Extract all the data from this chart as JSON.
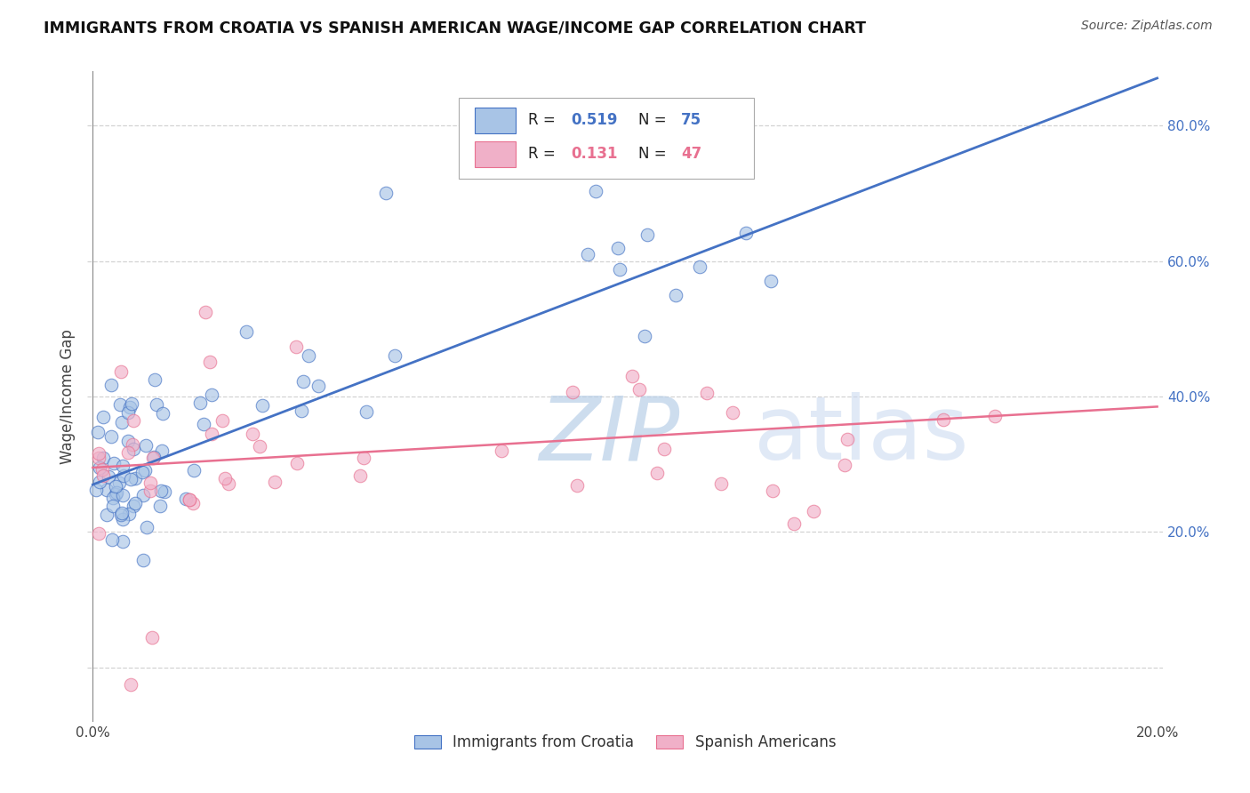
{
  "title": "IMMIGRANTS FROM CROATIA VS SPANISH AMERICAN WAGE/INCOME GAP CORRELATION CHART",
  "source": "Source: ZipAtlas.com",
  "ylabel": "Wage/Income Gap",
  "blue_color": "#4472C4",
  "pink_color": "#E87090",
  "blue_scatter": "#a8c4e6",
  "pink_scatter": "#f0b0c8",
  "background_color": "#ffffff",
  "grid_color": "#c8c8c8",
  "xlim": [
    -0.001,
    0.201
  ],
  "ylim": [
    -0.08,
    0.88
  ],
  "ytick_positions": [
    0.0,
    0.2,
    0.4,
    0.6,
    0.8
  ],
  "ytick_labels": [
    "",
    "20.0%",
    "40.0%",
    "60.0%",
    "80.0%"
  ],
  "xtick_positions": [
    0.0,
    0.04,
    0.08,
    0.12,
    0.16,
    0.2
  ],
  "xtick_labels": [
    "0.0%",
    "",
    "",
    "",
    "",
    "20.0%"
  ],
  "watermark_zip": "ZIP",
  "watermark_atlas": "atlas",
  "croatia_R": "0.519",
  "croatia_N": "75",
  "spanish_R": "0.131",
  "spanish_N": "47",
  "blue_line_x": [
    0.0,
    0.2
  ],
  "blue_line_y": [
    0.27,
    0.87
  ],
  "pink_line_x": [
    0.0,
    0.2
  ],
  "pink_line_y": [
    0.295,
    0.385
  ]
}
